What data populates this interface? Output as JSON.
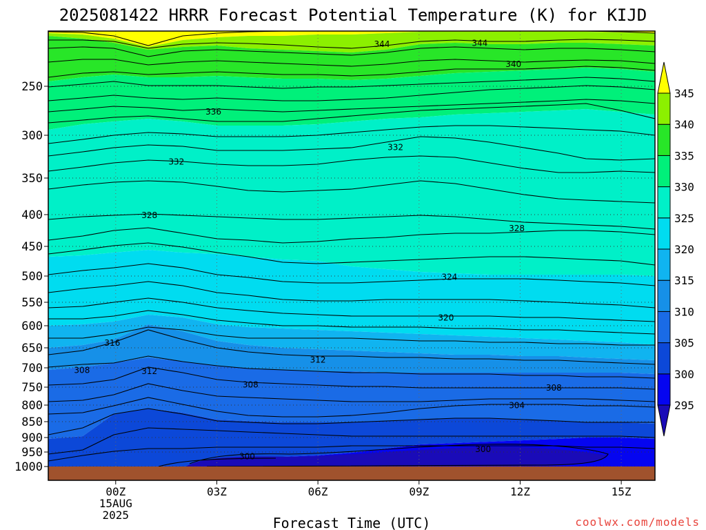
{
  "chart_data": {
    "type": "filled-contour",
    "title": "2025081422 HRRR Forecast Potential Temperature (K) for KIJD",
    "xlabel": "Forecast Time (UTC)",
    "credit": "coolwx.com/models",
    "x_ticks": [
      {
        "hour": 0,
        "lines": [
          "00Z",
          "15AUG",
          "2025"
        ]
      },
      {
        "hour": 3,
        "lines": [
          "03Z"
        ]
      },
      {
        "hour": 6,
        "lines": [
          "06Z"
        ]
      },
      {
        "hour": 9,
        "lines": [
          "09Z"
        ]
      },
      {
        "hour": 12,
        "lines": [
          "12Z"
        ]
      },
      {
        "hour": 15,
        "lines": [
          "15Z"
        ]
      }
    ],
    "x_range_hours": [
      -2,
      16
    ],
    "y_ticks_hpa": [
      250,
      300,
      350,
      400,
      450,
      500,
      550,
      600,
      650,
      700,
      750,
      800,
      850,
      900,
      950,
      1000
    ],
    "y_range_hpa": [
      200,
      1025
    ],
    "colorbar": {
      "levels": [
        295,
        300,
        305,
        310,
        315,
        320,
        325,
        330,
        335,
        340,
        345
      ],
      "labels": [
        "295",
        "300",
        "305",
        "310",
        "315",
        "320",
        "325",
        "330",
        "335",
        "340",
        "345"
      ],
      "colors": [
        "#1a0bb8",
        "#0505f0",
        "#0c48d8",
        "#1a6be6",
        "#1690e8",
        "#10b4f0",
        "#00dcf0",
        "#00f0c8",
        "#00f07a",
        "#28e628",
        "#8cf000",
        "#ffff00"
      ],
      "extends": "both"
    },
    "contour_interval_K": 4,
    "contour_labels": [
      {
        "label": "344",
        "hour": 7.9,
        "hpa": 212
      },
      {
        "label": "344",
        "hour": 10.8,
        "hpa": 211
      },
      {
        "label": "340",
        "hour": 11.8,
        "hpa": 230
      },
      {
        "label": "336",
        "hour": 2.9,
        "hpa": 276
      },
      {
        "label": "332",
        "hour": 1.8,
        "hpa": 331
      },
      {
        "label": "332",
        "hour": 8.3,
        "hpa": 314
      },
      {
        "label": "328",
        "hour": 1.0,
        "hpa": 401
      },
      {
        "label": "328",
        "hour": 11.9,
        "hpa": 422
      },
      {
        "label": "324",
        "hour": 9.9,
        "hpa": 502
      },
      {
        "label": "320",
        "hour": 9.8,
        "hpa": 583
      },
      {
        "label": "316",
        "hour": -0.1,
        "hpa": 639
      },
      {
        "label": "312",
        "hour": 6.0,
        "hpa": 680
      },
      {
        "label": "312",
        "hour": 1.0,
        "hpa": 709
      },
      {
        "label": "308",
        "hour": -1.0,
        "hpa": 706
      },
      {
        "label": "308",
        "hour": 4.0,
        "hpa": 744
      },
      {
        "label": "308",
        "hour": 13.0,
        "hpa": 752
      },
      {
        "label": "304",
        "hour": 11.9,
        "hpa": 801
      },
      {
        "label": "300",
        "hour": 3.9,
        "hpa": 966
      },
      {
        "label": "300",
        "hour": 10.9,
        "hpa": 940
      }
    ]
  }
}
